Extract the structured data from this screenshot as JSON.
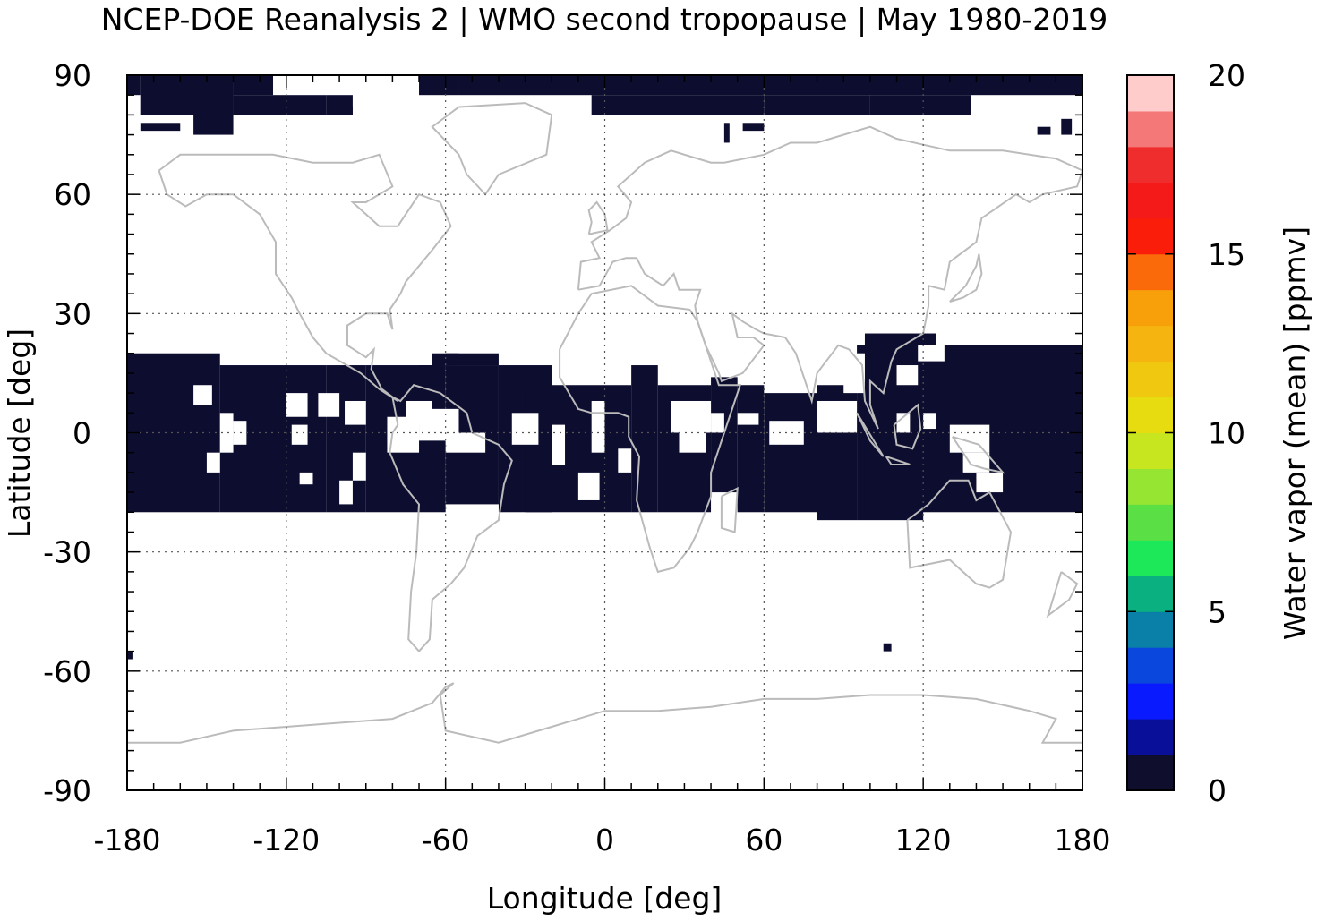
{
  "chart_data": {
    "type": "heatmap",
    "title": "NCEP-DOE Reanalysis 2 | WMO second tropopause | May 1980-2019",
    "xlabel": "Longitude [deg]",
    "ylabel": "Latitude [deg]",
    "xlim": [
      -180,
      180
    ],
    "ylim": [
      -90,
      90
    ],
    "x_ticks": [
      -180,
      -120,
      -60,
      0,
      60,
      120,
      180
    ],
    "y_ticks": [
      90,
      60,
      30,
      0,
      -30,
      -60,
      -90
    ],
    "x_tick_labels": [
      "-180",
      "-120",
      "-60",
      "0",
      "60",
      "120",
      "180"
    ],
    "y_tick_labels": [
      "90",
      "60",
      "30",
      "0",
      "-30",
      "-60",
      "-90"
    ],
    "grid": true,
    "colorbar": {
      "label": "Water vapor (mean) [ppmv]",
      "range": [
        0,
        20
      ],
      "ticks": [
        0,
        5,
        10,
        15,
        20
      ],
      "tick_labels": [
        "0",
        "5",
        "10",
        "15",
        "20"
      ],
      "colors": [
        "#0f0f2d",
        "#0a0f9a",
        "#0a1aff",
        "#0a48dd",
        "#0a80a8",
        "#0ab07f",
        "#1de85a",
        "#5ae045",
        "#95e532",
        "#c8e620",
        "#e6dc0f",
        "#f0c80f",
        "#f5b40f",
        "#f7a00a",
        "#fa6a0a",
        "#fa1e0a",
        "#f51a1a",
        "#f02d2d",
        "#f57878",
        "#ffcccc"
      ]
    },
    "value_regions": [
      {
        "value": 0,
        "lon": [
          -180,
          -180
        ],
        "lat": [
          85,
          85
        ]
      }
    ],
    "coastline_color": "#bbbbbb",
    "fill_color": "#0d0d30"
  }
}
